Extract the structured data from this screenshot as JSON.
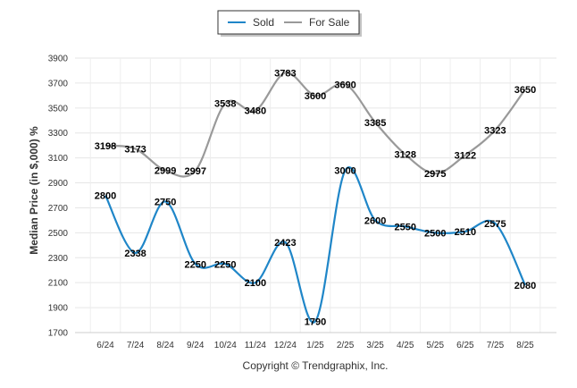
{
  "chart_data": {
    "type": "line",
    "title": "",
    "xlabel": "",
    "ylabel": "Median Price (in $,000) %",
    "ylim": [
      1700,
      3900
    ],
    "yticks": [
      1700,
      1900,
      2100,
      2300,
      2500,
      2700,
      2900,
      3100,
      3300,
      3500,
      3700,
      3900
    ],
    "categories": [
      "6/24",
      "7/24",
      "8/24",
      "9/24",
      "10/24",
      "11/24",
      "12/24",
      "1/25",
      "2/25",
      "3/25",
      "4/25",
      "5/25",
      "6/25",
      "7/25",
      "8/25"
    ],
    "series": [
      {
        "name": "Sold",
        "color": "#1f86c8",
        "values": [
          2800,
          2338,
          2750,
          2250,
          2250,
          2100,
          2423,
          1790,
          3000,
          2600,
          2550,
          2500,
          2510,
          2575,
          2080
        ]
      },
      {
        "name": "For Sale",
        "color": "#999999",
        "values": [
          3198,
          3173,
          2999,
          2997,
          3538,
          3480,
          3783,
          3600,
          3690,
          3385,
          3128,
          2975,
          3122,
          3323,
          3650
        ]
      }
    ],
    "legend_position": "top-center",
    "grid": true
  },
  "footer": "Copyright © Trendgraphix, Inc."
}
